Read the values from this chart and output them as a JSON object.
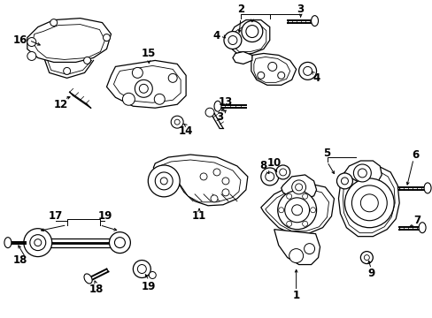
{
  "bg_color": "#ffffff",
  "figsize": [
    4.89,
    3.6
  ],
  "dpi": 100,
  "lw_part": 0.9,
  "lw_leader": 0.7,
  "label_fontsize": 8.5,
  "label_fontweight": "bold"
}
